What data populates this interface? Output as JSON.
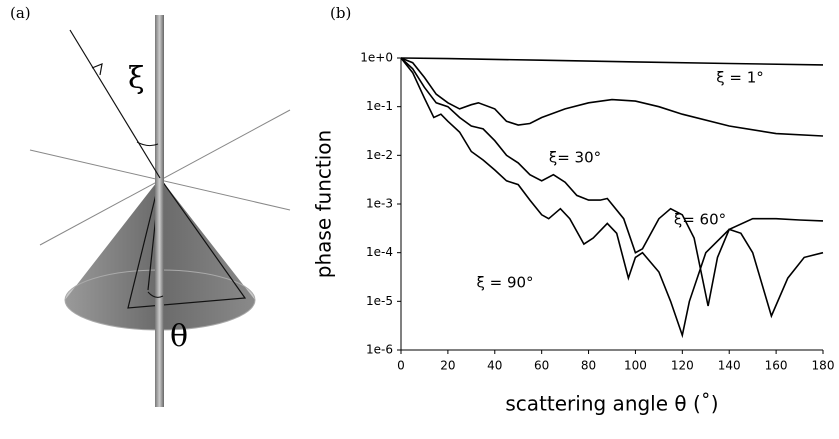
{
  "panels": {
    "a": {
      "label": "(a)",
      "xi": "ξ",
      "theta": "θ"
    },
    "b": {
      "label": "(b)"
    }
  },
  "chart_data": {
    "type": "line",
    "x_label": "scattering angle θ (˚)",
    "y_label": "phase function",
    "log_y": true,
    "xlim": [
      0,
      180
    ],
    "ylim": [
      1e-06,
      1
    ],
    "xticks": [
      0,
      20,
      40,
      60,
      80,
      100,
      120,
      140,
      160,
      180
    ],
    "yticks": [
      {
        "value": 1,
        "label": "1e+0"
      },
      {
        "value": 0.1,
        "label": "1e-1"
      },
      {
        "value": 0.01,
        "label": "1e-2"
      },
      {
        "value": 0.001,
        "label": "1e-3"
      },
      {
        "value": 0.0001,
        "label": "1e-4"
      },
      {
        "value": 1e-05,
        "label": "1e-5"
      },
      {
        "value": 1e-06,
        "label": "1e-6"
      }
    ],
    "series": [
      {
        "name": "ξ = 1°",
        "color": "#000000",
        "x": [
          0,
          20,
          60,
          100,
          140,
          180
        ],
        "values": [
          1,
          0.97,
          0.9,
          0.83,
          0.77,
          0.72
        ]
      },
      {
        "name": "ξ= 30°",
        "color": "#000000",
        "x": [
          0,
          5,
          10,
          15,
          20,
          25,
          30,
          33,
          40,
          45,
          50,
          55,
          60,
          70,
          80,
          90,
          100,
          110,
          120,
          140,
          160,
          180
        ],
        "values": [
          1,
          0.8,
          0.4,
          0.18,
          0.12,
          0.09,
          0.11,
          0.12,
          0.09,
          0.05,
          0.042,
          0.045,
          0.06,
          0.09,
          0.12,
          0.14,
          0.13,
          0.1,
          0.07,
          0.04,
          0.028,
          0.025
        ]
      },
      {
        "name": "ξ= 60°",
        "color": "#000000",
        "x": [
          0,
          5,
          10,
          15,
          20,
          25,
          30,
          35,
          40,
          45,
          50,
          55,
          60,
          65,
          70,
          75,
          80,
          85,
          88,
          95,
          100,
          103,
          110,
          115,
          120,
          125,
          131,
          135,
          140,
          145,
          150,
          158,
          165,
          172,
          180
        ],
        "values": [
          1,
          0.6,
          0.25,
          0.12,
          0.1,
          0.06,
          0.04,
          0.035,
          0.02,
          0.01,
          0.007,
          0.004,
          0.003,
          0.004,
          0.0028,
          0.0015,
          0.0012,
          0.0012,
          0.0013,
          0.0005,
          0.0001,
          0.00012,
          0.0005,
          0.0008,
          0.0006,
          0.0002,
          8e-06,
          8e-05,
          0.0003,
          0.00025,
          0.0001,
          5e-06,
          3e-05,
          8e-05,
          0.0001
        ]
      },
      {
        "name": "ξ = 90°",
        "color": "#000000",
        "x": [
          0,
          5,
          10,
          14,
          17,
          20,
          25,
          30,
          35,
          40,
          45,
          50,
          55,
          60,
          63,
          68,
          72,
          78,
          82,
          88,
          92,
          97,
          100,
          103,
          110,
          115,
          120,
          123,
          130,
          140,
          150,
          160,
          170,
          180
        ],
        "values": [
          1,
          0.5,
          0.15,
          0.06,
          0.07,
          0.05,
          0.03,
          0.012,
          0.008,
          0.005,
          0.003,
          0.0025,
          0.0012,
          0.0006,
          0.0005,
          0.0008,
          0.0005,
          0.00015,
          0.0002,
          0.0004,
          0.00025,
          3e-05,
          8e-05,
          0.0001,
          4e-05,
          1e-05,
          2e-06,
          1e-05,
          0.0001,
          0.0003,
          0.0005,
          0.0005,
          0.00047,
          0.00045
        ]
      }
    ]
  }
}
